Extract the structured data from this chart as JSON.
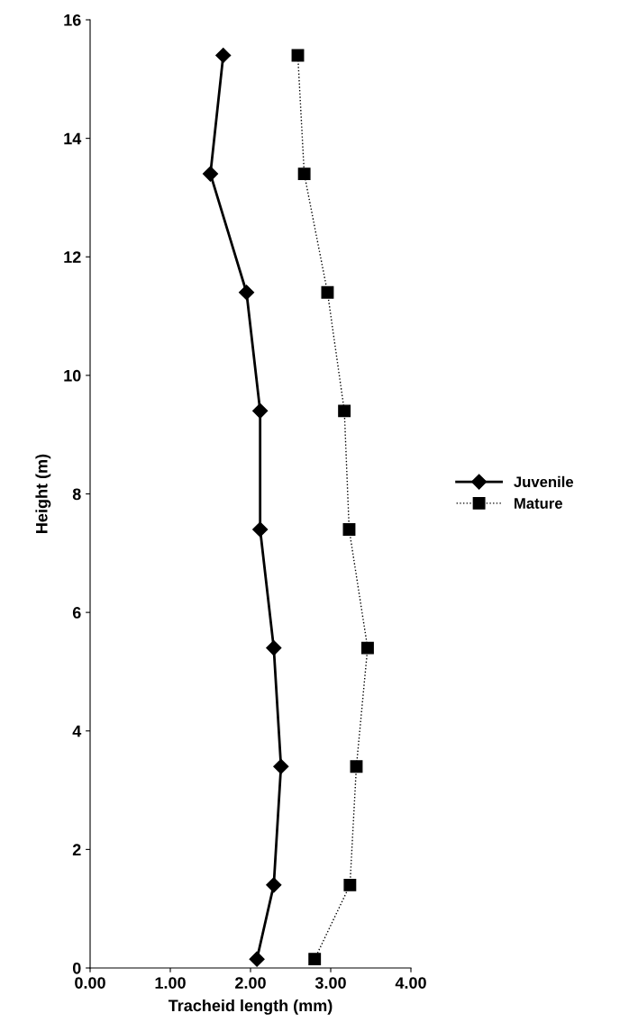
{
  "chart_data": {
    "type": "line",
    "xlabel": "Tracheid length (mm)",
    "ylabel": "Height (m)",
    "xlim": [
      0,
      4
    ],
    "xticks": [
      {
        "value": 0,
        "label": "0.00"
      },
      {
        "value": 1,
        "label": "1.00"
      },
      {
        "value": 2,
        "label": "2.00"
      },
      {
        "value": 3,
        "label": "3.00"
      },
      {
        "value": 4,
        "label": "4.00"
      }
    ],
    "ylim": [
      0,
      16
    ],
    "yticks": [
      0,
      2,
      4,
      6,
      8,
      10,
      12,
      14,
      16
    ],
    "grid": false,
    "legend": "right",
    "series": [
      {
        "name": "Juvenile",
        "color": "#000000",
        "marker": "diamond",
        "line_style": "solid",
        "x": [
          2.08,
          2.29,
          2.38,
          2.29,
          2.12,
          2.12,
          1.95,
          1.5,
          1.66
        ],
        "values": [
          0.15,
          1.4,
          3.4,
          5.4,
          7.4,
          9.4,
          11.4,
          13.4,
          15.4
        ]
      },
      {
        "name": "Mature",
        "color": "#000000",
        "marker": "square",
        "line_style": "dotted",
        "x": [
          2.8,
          3.24,
          3.32,
          3.46,
          3.23,
          3.17,
          2.96,
          2.67,
          2.59
        ],
        "values": [
          0.15,
          1.4,
          3.4,
          5.4,
          7.4,
          9.4,
          11.4,
          13.4,
          15.4
        ]
      }
    ]
  }
}
